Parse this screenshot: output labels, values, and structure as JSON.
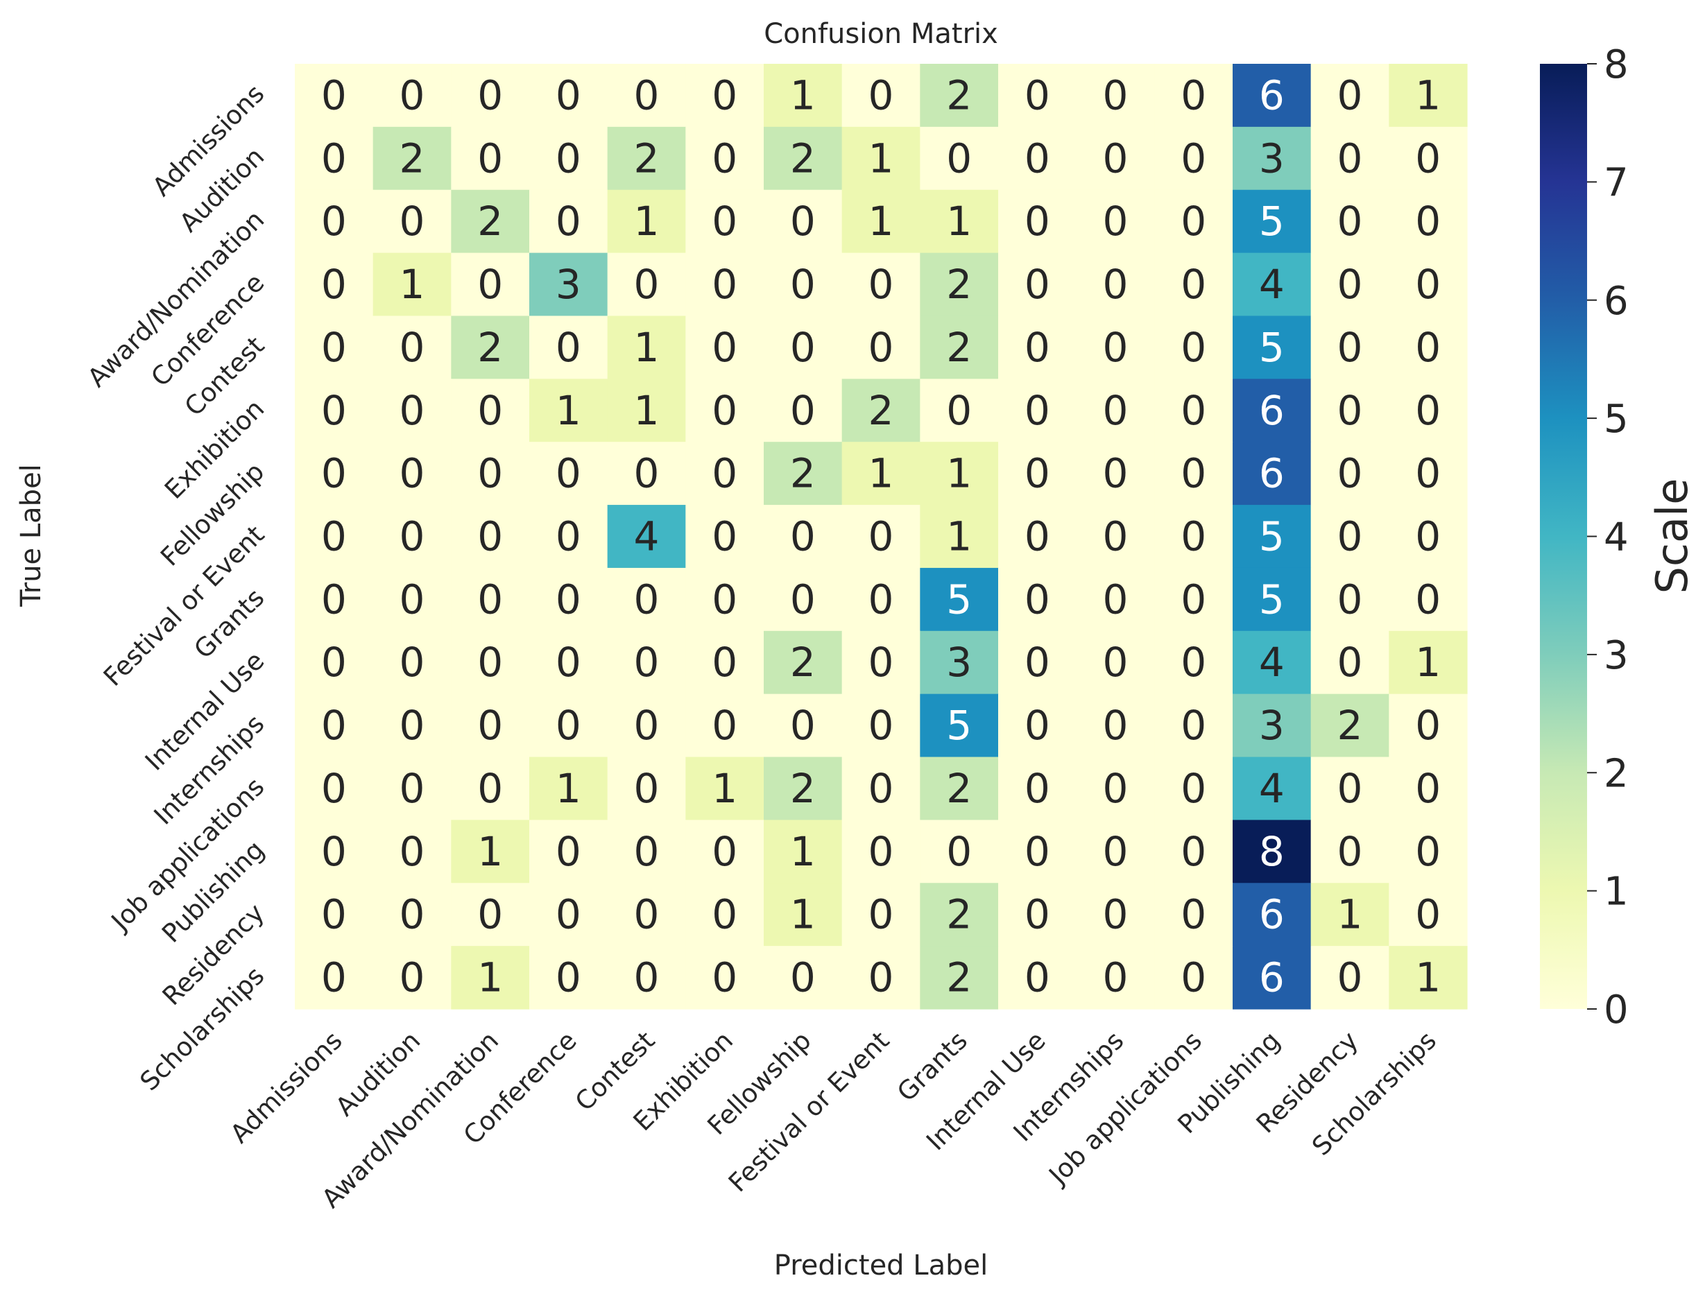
{
  "chart_data": {
    "type": "heatmap",
    "title": "Confusion Matrix",
    "xlabel": "Predicted Label",
    "ylabel": "True Label",
    "colorbar_label": "Scale",
    "colormap": "YlGnBu",
    "vmin": 0,
    "vmax": 8,
    "colorbar_ticks": [
      "0",
      "1",
      "2",
      "3",
      "4",
      "5",
      "6",
      "7",
      "8"
    ],
    "x_categories": [
      "Admissions",
      "Audition",
      "Award/Nomination",
      "Conference",
      "Contest",
      "Exhibition",
      "Fellowship",
      "Festival or Event",
      "Grants",
      "Internal Use",
      "Internships",
      "Job applications",
      "Publishing",
      "Residency",
      "Scholarships"
    ],
    "y_categories": [
      "Admissions",
      "Audition",
      "Award/Nomination",
      "Conference",
      "Contest",
      "Exhibition",
      "Fellowship",
      "Festival or Event",
      "Grants",
      "Internal Use",
      "Internships",
      "Job applications",
      "Publishing",
      "Residency",
      "Scholarships"
    ],
    "values": [
      [
        0,
        0,
        0,
        0,
        0,
        0,
        1,
        0,
        2,
        0,
        0,
        0,
        6,
        0,
        1
      ],
      [
        0,
        2,
        0,
        0,
        2,
        0,
        2,
        1,
        0,
        0,
        0,
        0,
        3,
        0,
        0
      ],
      [
        0,
        0,
        2,
        0,
        1,
        0,
        0,
        1,
        1,
        0,
        0,
        0,
        5,
        0,
        0
      ],
      [
        0,
        1,
        0,
        3,
        0,
        0,
        0,
        0,
        2,
        0,
        0,
        0,
        4,
        0,
        0
      ],
      [
        0,
        0,
        2,
        0,
        1,
        0,
        0,
        0,
        2,
        0,
        0,
        0,
        5,
        0,
        0
      ],
      [
        0,
        0,
        0,
        1,
        1,
        0,
        0,
        2,
        0,
        0,
        0,
        0,
        6,
        0,
        0
      ],
      [
        0,
        0,
        0,
        0,
        0,
        0,
        2,
        1,
        1,
        0,
        0,
        0,
        6,
        0,
        0
      ],
      [
        0,
        0,
        0,
        0,
        4,
        0,
        0,
        0,
        1,
        0,
        0,
        0,
        5,
        0,
        0
      ],
      [
        0,
        0,
        0,
        0,
        0,
        0,
        0,
        0,
        5,
        0,
        0,
        0,
        5,
        0,
        0
      ],
      [
        0,
        0,
        0,
        0,
        0,
        0,
        2,
        0,
        3,
        0,
        0,
        0,
        4,
        0,
        1
      ],
      [
        0,
        0,
        0,
        0,
        0,
        0,
        0,
        0,
        5,
        0,
        0,
        0,
        3,
        2,
        0
      ],
      [
        0,
        0,
        0,
        1,
        0,
        1,
        2,
        0,
        2,
        0,
        0,
        0,
        4,
        0,
        0
      ],
      [
        0,
        0,
        1,
        0,
        0,
        0,
        1,
        0,
        0,
        0,
        0,
        0,
        8,
        0,
        0
      ],
      [
        0,
        0,
        0,
        0,
        0,
        0,
        1,
        0,
        2,
        0,
        0,
        0,
        6,
        1,
        0
      ],
      [
        0,
        0,
        1,
        0,
        0,
        0,
        0,
        0,
        2,
        0,
        0,
        0,
        6,
        0,
        1
      ]
    ]
  }
}
